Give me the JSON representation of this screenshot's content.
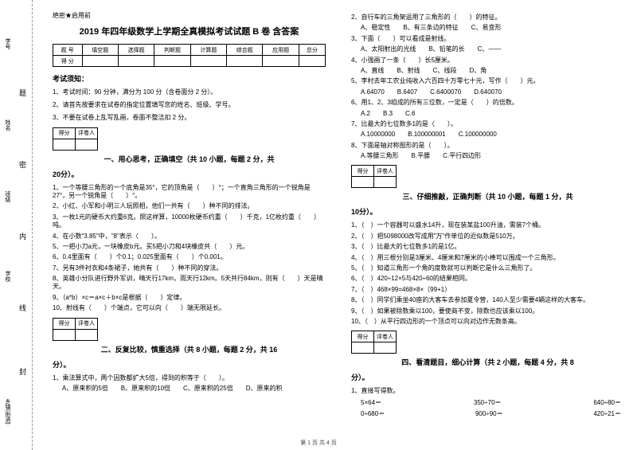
{
  "margin": {
    "labels": [
      "学号",
      "姓名",
      "班级",
      "学校",
      "乡镇(街道)"
    ],
    "verticals": [
      "题",
      "密",
      "内",
      "线",
      "封"
    ]
  },
  "header": {
    "secret": "绝密★启用前",
    "title": "2019 年四年级数学上学期全真模拟考试试题 B 卷 含答案"
  },
  "scoreTable": {
    "cols": [
      "题 号",
      "填空题",
      "选择题",
      "判断题",
      "计算题",
      "综合题",
      "应用题",
      "总分"
    ],
    "row2": "得 分"
  },
  "notice": {
    "heading": "考试须知：",
    "lines": [
      "1、考试时间：90 分钟，满分为 100 分（含卷面分 2 分）。",
      "2、请首先按要求在试卷的指定位置填写您的姓名、班级、学号。",
      "3、不要在试卷上乱写乱画，卷面不整洁扣 2 分。"
    ]
  },
  "markTable": {
    "c1": "得分",
    "c2": "评卷人"
  },
  "section1": {
    "title": "一、用心思考，正确填空（共 10 小题，每题 2 分，共",
    "title2": "20分）。"
  },
  "s1q": [
    "1、一个等腰三角形的一个底角是35°，它的顶角是（　　）°；一个直角三角形的一个锐角是27°，另一个锐角是（　　）°。",
    "2、小红、小军和小明三人玩照相，他们一共有（　　）种不同的排法。",
    "3、一枚1元的硬币大约重6克。照这样算，10000枚硬币约重（　　）千克，1亿枚约重（　　）吨。",
    "4、在小数\"3.85\"中，\"8\"表示（　　）。",
    "5、一把小刀a元，一块橡皮b元。买5把小刀和4块橡皮共（　　）元。",
    "6、0.4里面有（　　）个0.1；0.025里面有（　　）个0.001。",
    "7、另有3件衬衣和4条裙子，她共有（　　）种不同的穿法。",
    "8、英雄小分队进行野外军训，晴天行17km，雨天行12km。5天共行84km，则有（　　）天是晴天。",
    "9、（a*b）×c＝a×c＋b×c是根据（　　）定律。",
    "10、射线有（　　）个端点，它可以向（　　）端无限延长。"
  ],
  "section2": {
    "title": "二、反复比较，慎重选择（共 8 小题，每题 2 分，共 16",
    "title2": "分）。"
  },
  "s2q1": {
    "stem": "1、乘法算式中，两个因数都扩大5倍，得到的积等于（　　）。",
    "opts": "A、原来积的5倍　　B、原来积的10倍　　C、原来积的25倍　　D、原来的积"
  },
  "s2r": [
    {
      "stem": "2、自行车的三角架运用了三角形的（　　）的特征。",
      "opts": "A、稳定性　　B、有三条边的特征　　C、易变形"
    },
    {
      "stem": "3、下面（　　）可以看成是射线。",
      "opts": "A、太阳射出的光线　　B、铅笔的长　　C、——"
    },
    {
      "stem": "4、小强画了一条（　　）长5厘米。",
      "opts": "A、直线　　B、射线　　C、线段　　D、角"
    },
    {
      "stem": "5、李村去年工农业纯收入六百四十万零七十元，写作（　　）元。",
      "opts": "A.64070　　B.6407　　C.6400070　　D.640070"
    },
    {
      "stem": "6、用1、2、3组成的所有三位数，一定是（　　）的倍数。",
      "opts": "A.2　　B.3　　C.6"
    },
    {
      "stem": "7、比最大的七位数多1的是（　　）。",
      "opts": "A.10000000　　B.100000001　　C.100000000"
    },
    {
      "stem": "8、下面是轴对称图形的是（　　）。",
      "opts": "A.等腰三角形　　B.平腰　　C.平行四边形"
    }
  ],
  "section3": {
    "title": "三、仔细推敲，正确判断（共 10 小题，每题 1 分，共",
    "title2": "10分）。"
  },
  "s3q": [
    "1、（　）一个容器可以盛水14升，现在装某盐100升油，需装7个桶。",
    "2、（　）把5098000改写成用\"万\"作单位的近似数是510万。",
    "3、（　）比最大的七位数多1的是1亿。",
    "4、（　）用三根分别是3厘米、4厘米和7厘米的小棒可以围成一个三角形。",
    "5、（　）知道三角形一个角的度数就可以判断它是什么三角形了。",
    "6、（　）420÷12×5与420÷60的结果相同。",
    "7、（　）468×99=468×8×（99+1）",
    "8、（　）同学们乘坐40座的大客车去参加夏令营，140人至少需要4辆这样的大客车。",
    "9、（　）如果被除数乘以100，要使商不变，除数也应该乘以100。",
    "10、（　）从平行四边形的一个顶点可以向对边作无数条高。"
  ],
  "section4": {
    "title": "四、看清题目，细心计算（共 2 小题，每题 4 分，共 8",
    "title2": "分）。"
  },
  "s4": {
    "lead": "1、直接写得数。",
    "rows": [
      [
        "5×64＝",
        "350÷70＝",
        "640÷80＝"
      ],
      [
        "0÷680＝",
        "900÷90＝",
        "420÷21＝"
      ]
    ]
  },
  "footer": "第 1 页 共 4 页"
}
